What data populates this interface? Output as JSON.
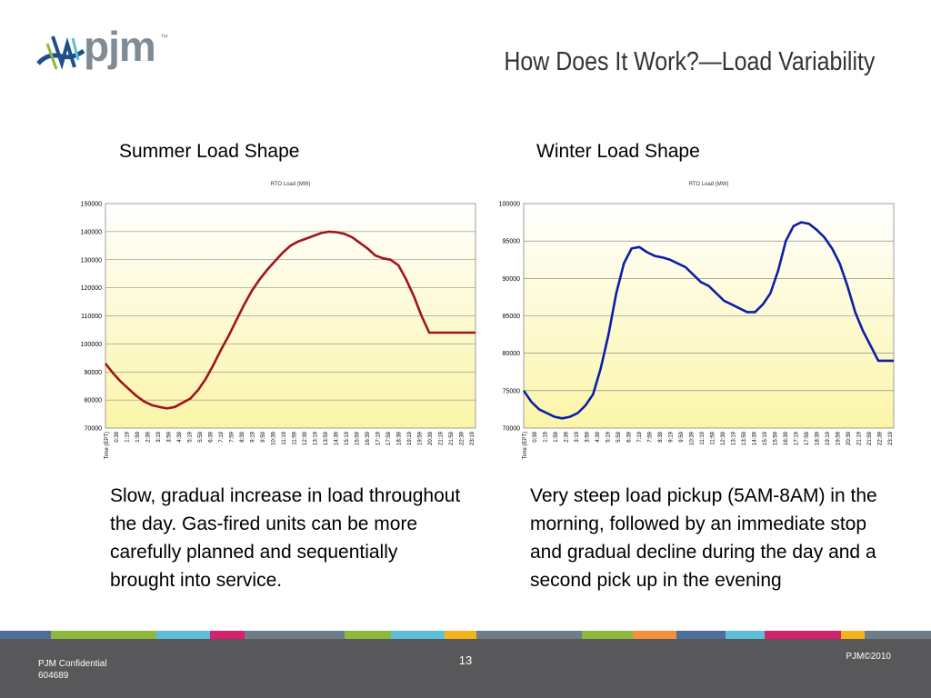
{
  "header": {
    "logo_text": "pjm",
    "title": "How Does It Work?—Load Variability"
  },
  "summer": {
    "heading": "Summer Load Shape",
    "description": "Slow, gradual increase in load throughout the day.  Gas-fired units can be more carefully planned and sequentially brought into service."
  },
  "winter": {
    "heading": "Winter Load Shape",
    "description": "Very steep load pickup (5AM-8AM) in the morning, followed by an immediate stop and gradual decline during the day and a second pick up in the evening"
  },
  "footer": {
    "confidential": "PJM Confidential",
    "doc_number": "604689",
    "page_number": "13",
    "copyright": "PJM©2010"
  },
  "colors": {
    "plot_top": "#ffffff",
    "plot_bottom": "#fbf5a8",
    "summer_line": "#a0141e",
    "winter_line": "#0c1ea6",
    "footer_bg": "#58585a",
    "stripe": [
      "#4e6e9a",
      "#8cb83e",
      "#5fbfd9",
      "#d4236d",
      "#6f7d8a",
      "#8cb83e",
      "#5fbfd9",
      "#f5b31b",
      "#6f7d8a",
      "#8cb83e",
      "#f1913b",
      "#4e6e9a",
      "#5fbfd9",
      "#d4236d",
      "#f5b31b",
      "#6f7d8a"
    ]
  },
  "chart_data": [
    {
      "type": "line",
      "title": "RTO Load (MW)",
      "xlabel": "Time (EPT)",
      "ylabel": "",
      "ylim": [
        70000,
        150000
      ],
      "yticks": [
        70000,
        80000,
        90000,
        100000,
        110000,
        120000,
        130000,
        140000,
        150000
      ],
      "x_tick_labels": [
        "0:39",
        "1:19",
        "1:59",
        "2:39",
        "3:19",
        "3:59",
        "4:39",
        "5:19",
        "5:59",
        "6:39",
        "7:19",
        "7:59",
        "8:39",
        "9:19",
        "9:59",
        "10:39",
        "11:19",
        "11:59",
        "12:39",
        "13:19",
        "13:59",
        "14:39",
        "15:19",
        "15:59",
        "16:39",
        "17:19",
        "17:59",
        "18:39",
        "19:19",
        "19:59",
        "20:39",
        "21:19",
        "21:59",
        "22:39",
        "23:19"
      ],
      "grid": true,
      "series": [
        {
          "x": [
            0,
            0.5,
            1,
            1.5,
            2,
            2.5,
            3,
            3.5,
            4,
            4.5,
            5,
            5.5,
            6,
            6.5,
            7,
            7.5,
            8,
            8.5,
            9,
            9.5,
            10,
            10.5,
            11,
            11.5,
            12,
            12.5,
            13,
            13.5,
            14,
            14.5,
            15,
            15.5,
            16,
            16.5,
            17,
            17.5,
            18,
            18.5,
            19,
            19.5,
            20,
            20.5,
            21,
            21.5,
            22,
            22.5,
            23,
            23.5,
            24
          ],
          "values": [
            93000,
            89500,
            86500,
            84000,
            81500,
            79500,
            78200,
            77500,
            77000,
            77500,
            79000,
            80500,
            83500,
            87500,
            92500,
            98000,
            103000,
            108500,
            114000,
            119000,
            123000,
            126500,
            129500,
            132500,
            135000,
            136500,
            137500,
            138500,
            139500,
            140000,
            139800,
            139200,
            138000,
            136000,
            134000,
            131500,
            130500,
            130000,
            128000,
            123000,
            117000,
            110000,
            104000,
            104000,
            104000,
            104000,
            104000,
            104000,
            104000
          ]
        }
      ]
    },
    {
      "type": "line",
      "title": "RTO Load (MW)",
      "xlabel": "Time (EPT)",
      "ylabel": "",
      "ylim": [
        70000,
        100000
      ],
      "yticks": [
        70000,
        75000,
        80000,
        85000,
        90000,
        95000,
        100000
      ],
      "x_tick_labels": [
        "0:39",
        "1:19",
        "1:59",
        "2:39",
        "3:19",
        "3:59",
        "4:39",
        "5:19",
        "5:59",
        "6:39",
        "7:19",
        "7:59",
        "8:39",
        "9:19",
        "9:59",
        "10:39",
        "11:19",
        "11:59",
        "12:39",
        "13:19",
        "13:59",
        "14:39",
        "15:19",
        "15:59",
        "16:39",
        "17:19",
        "17:59",
        "18:39",
        "19:19",
        "19:59",
        "20:39",
        "21:19",
        "21:59",
        "22:39",
        "23:19"
      ],
      "grid": true,
      "series": [
        {
          "x": [
            0,
            0.5,
            1,
            1.5,
            2,
            2.5,
            3,
            3.5,
            4,
            4.5,
            5,
            5.5,
            6,
            6.5,
            7,
            7.5,
            8,
            8.5,
            9,
            9.5,
            10,
            10.5,
            11,
            11.5,
            12,
            12.5,
            13,
            13.5,
            14,
            14.5,
            15,
            15.5,
            16,
            16.5,
            17,
            17.5,
            18,
            18.5,
            19,
            19.5,
            20,
            20.5,
            21,
            21.5,
            22,
            22.5,
            23,
            23.5,
            24
          ],
          "values": [
            75000,
            73500,
            72500,
            72000,
            71500,
            71300,
            71500,
            72000,
            73000,
            74500,
            78000,
            82500,
            88000,
            92000,
            94000,
            94200,
            93500,
            93000,
            92800,
            92500,
            92000,
            91500,
            90500,
            89500,
            89000,
            88000,
            87000,
            86500,
            86000,
            85500,
            85500,
            86500,
            88000,
            91000,
            95000,
            97000,
            97500,
            97300,
            96500,
            95500,
            94000,
            92000,
            89000,
            85500,
            83000,
            81000,
            79000,
            79000,
            79000
          ]
        }
      ]
    }
  ]
}
